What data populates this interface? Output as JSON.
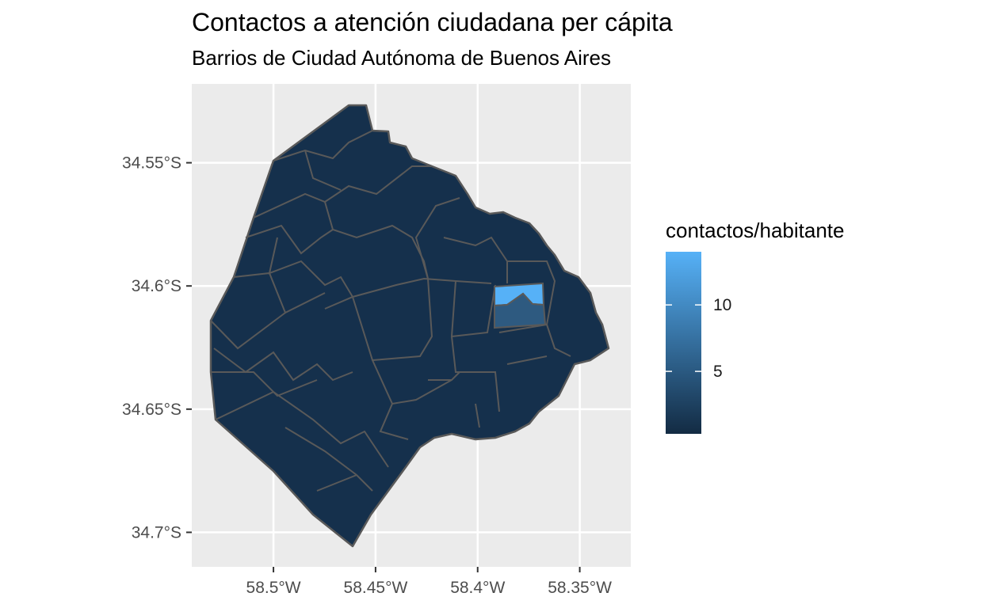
{
  "chart_data": {
    "type": "choropleth-map",
    "title": "Contactos a atención ciudadana per cápita",
    "subtitle": "Barrios de Ciudad Autónoma de Buenos Aires",
    "x_ticks": [
      "58.5°W",
      "58.45°W",
      "58.4°W",
      "58.35°W"
    ],
    "x_tick_values": [
      -58.5,
      -58.45,
      -58.4,
      -58.35
    ],
    "y_ticks": [
      "34.55°S",
      "34.6°S",
      "34.65°S",
      "34.7°S"
    ],
    "y_tick_values": [
      -34.55,
      -34.6,
      -34.65,
      -34.7
    ],
    "xlim": [
      -58.54,
      -58.325
    ],
    "ylim": [
      -34.714,
      -34.518
    ],
    "grid": true,
    "legend": {
      "title": "contactos/habitante",
      "placement": "right",
      "range": [
        0.3,
        14
      ],
      "breaks": [
        5,
        10
      ],
      "break_labels": [
        "5",
        "10"
      ],
      "low_color": "#132B43",
      "high_color": "#56B1F7"
    },
    "highlighted_regions": [
      {
        "value": 14,
        "color": "#56B1F7"
      },
      {
        "value": 5,
        "color": "#2E5A80"
      }
    ],
    "typical_region_value": 0.8,
    "background_color": "#EBEBEB",
    "region_border_color": "#595959"
  }
}
